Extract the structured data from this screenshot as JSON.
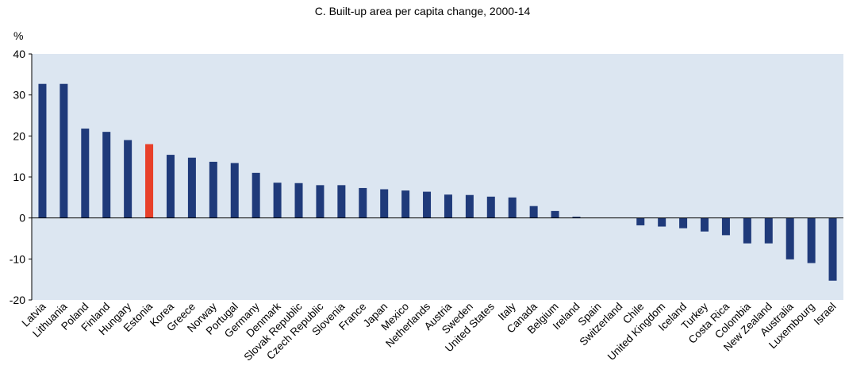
{
  "chart_data": {
    "type": "bar",
    "title": "C. Built-up area per capita change, 2000-14",
    "ylabel": "%",
    "xlabel": "",
    "ylim": [
      -20,
      40
    ],
    "yticks": [
      40,
      30,
      20,
      10,
      0,
      -10,
      -20
    ],
    "grid": false,
    "background": "#dce6f1",
    "bar_color": "#1f3a7a",
    "highlight_color": "#e8402a",
    "highlight_category": "Estonia",
    "categories": [
      "Latvia",
      "Lithuania",
      "Poland",
      "Finland",
      "Hungary",
      "Estonia",
      "Korea",
      "Greece",
      "Norway",
      "Portugal",
      "Germany",
      "Denmark",
      "Slovak Republic",
      "Czech Republic",
      "Slovenia",
      "France",
      "Japan",
      "Mexico",
      "Netherlands",
      "Austria",
      "Sweden",
      "United States",
      "Italy",
      "Canada",
      "Belgium",
      "Ireland",
      "Spain",
      "Switzerland",
      "Chile",
      "United Kingdom",
      "Iceland",
      "Turkey",
      "Costa Rica",
      "Colombia",
      "New Zealand",
      "Australia",
      "Luxembourg",
      "Israel"
    ],
    "values": [
      32.7,
      32.7,
      21.8,
      21.0,
      19.0,
      18.0,
      15.4,
      14.7,
      13.7,
      13.4,
      11.0,
      8.6,
      8.5,
      8.0,
      8.0,
      7.3,
      7.0,
      6.7,
      6.4,
      5.7,
      5.6,
      5.2,
      5.0,
      2.9,
      1.7,
      0.3,
      0.0,
      0.0,
      -1.8,
      -2.1,
      -2.5,
      -3.3,
      -4.2,
      -6.2,
      -6.2,
      -10.1,
      -11.0,
      -15.3
    ]
  }
}
